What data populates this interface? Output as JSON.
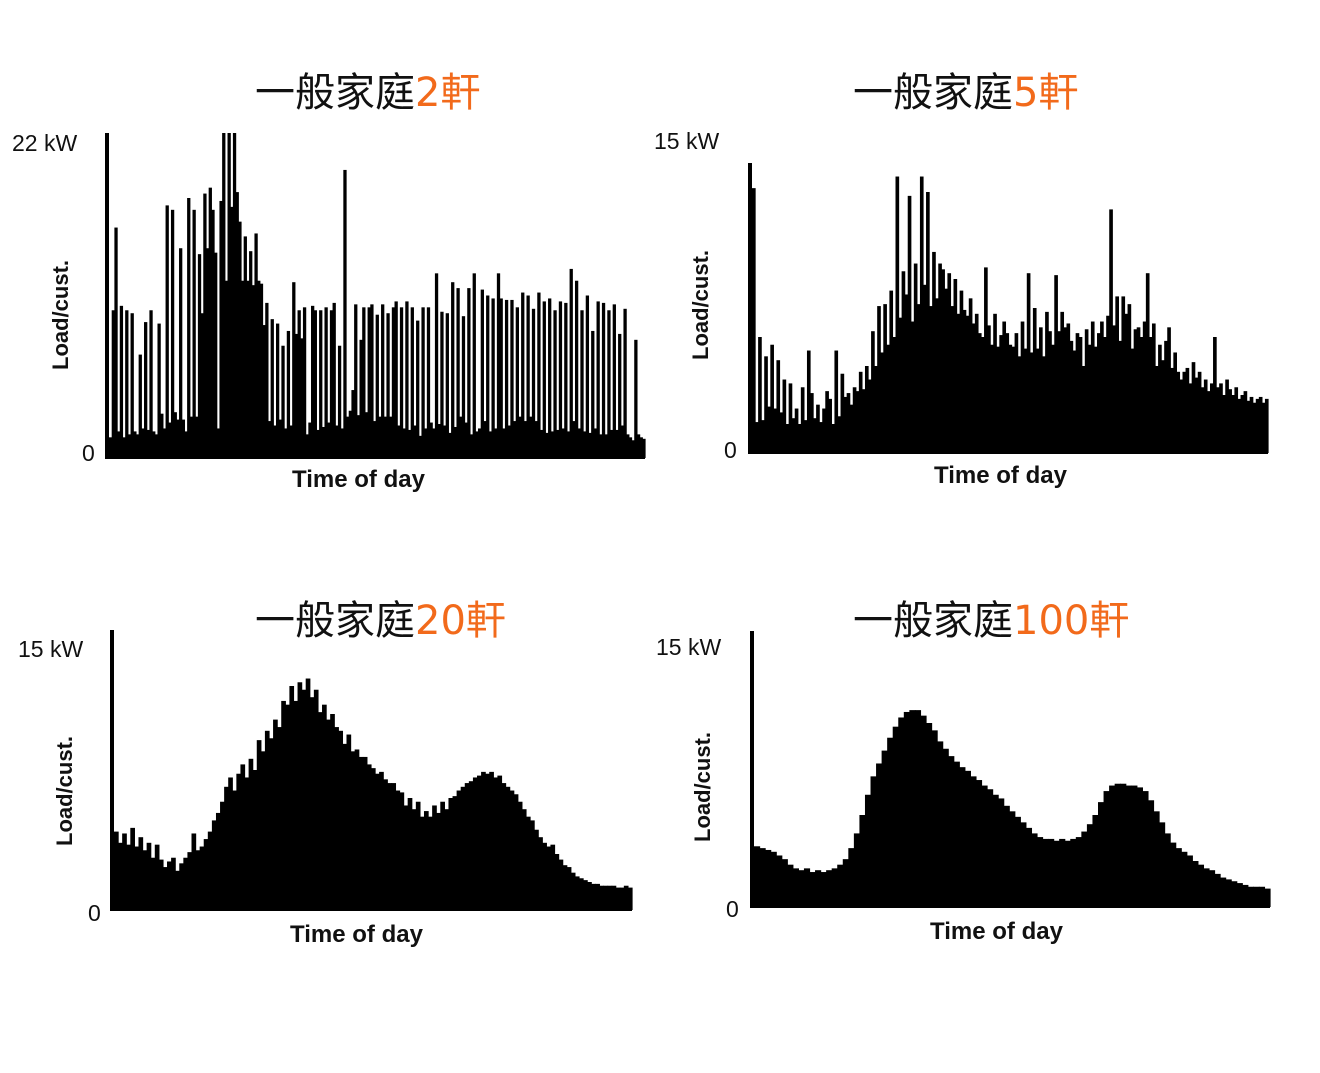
{
  "chart_data": [
    {
      "type": "bar",
      "title_base": "一般家庭",
      "title_count": "2軒",
      "ylabel": "Load/cust.",
      "xlabel": "Time of day",
      "ymax_label": "22 kW",
      "ymin_label": "0",
      "ylim": [
        0,
        22
      ],
      "values": [
        1.4,
        10.0,
        15.6,
        1.8,
        10.3,
        1.4,
        10.0,
        1.6,
        9.8,
        1.8,
        1.6,
        7.0,
        2.0,
        9.2,
        1.9,
        10.0,
        1.8,
        1.6,
        9.1,
        3.0,
        2.0,
        17.1,
        2.4,
        16.8,
        3.1,
        2.6,
        14.2,
        2.6,
        1.8,
        17.6,
        2.8,
        16.8,
        2.8,
        13.8,
        9.8,
        17.9,
        14.2,
        18.3,
        16.8,
        13.9,
        2.0,
        17.4,
        22.0,
        12.0,
        22.0,
        17.0,
        22.0,
        18.0,
        16.0,
        12.0,
        15.0,
        12.0,
        14.0,
        11.7,
        15.2,
        12.0,
        11.8,
        9.0,
        10.5,
        2.5,
        9.4,
        2.2,
        9.1,
        2.6,
        7.6,
        2.0,
        8.6,
        2.2,
        11.9,
        8.4,
        10.0,
        8.1,
        10.2,
        1.6,
        2.4,
        10.3,
        10.0,
        1.9,
        10.0,
        2.1,
        10.2,
        2.4,
        10.0,
        10.5,
        2.2,
        7.6,
        2.0,
        19.5,
        2.8,
        3.2,
        4.6,
        10.4,
        2.9,
        8.0,
        10.2,
        3.1,
        10.2,
        10.4,
        2.5,
        9.7,
        2.8,
        10.4,
        2.8,
        9.8,
        2.8,
        10.2,
        10.6,
        2.2,
        10.2,
        2.0,
        10.6,
        1.9,
        10.2,
        2.2,
        9.3,
        1.5,
        10.2,
        2.0,
        10.2,
        2.4,
        2.0,
        12.5,
        2.3,
        9.9,
        2.2,
        9.8,
        1.7,
        11.9,
        2.1,
        11.5,
        2.8,
        9.6,
        2.4,
        11.5,
        1.6,
        12.5,
        1.8,
        2.0,
        11.4,
        2.5,
        11.0,
        1.8,
        10.8,
        2.0,
        12.5,
        10.8,
        2.0,
        10.7,
        2.2,
        10.7,
        2.5,
        10.2,
        2.8,
        11.2,
        2.5,
        11.0,
        2.8,
        10.1,
        2.5,
        11.2,
        1.9,
        10.6,
        1.7,
        10.8,
        1.8,
        10.0,
        1.9,
        10.6,
        2.0,
        10.5,
        1.8,
        12.8,
        2.5,
        12.0,
        2.0,
        10.0,
        1.8,
        11.0,
        1.7,
        8.6,
        2.0,
        10.6,
        1.6,
        10.5,
        1.6,
        10.0,
        1.9,
        10.4,
        1.9,
        8.4,
        2.2,
        10.1,
        1.6,
        1.4,
        1.2,
        8.0,
        1.6,
        1.4,
        1.3
      ]
    },
    {
      "type": "bar",
      "title_base": "一般家庭",
      "title_count": "5軒",
      "ylabel": "Load/cust.",
      "xlabel": "Time of day",
      "ymax_label": "15 kW",
      "ymin_label": "0",
      "ylim": [
        0,
        15
      ],
      "values": [
        13.7,
        1.6,
        6.0,
        1.7,
        5.0,
        2.4,
        5.6,
        2.3,
        4.8,
        2.1,
        3.8,
        1.5,
        3.6,
        1.8,
        2.3,
        1.5,
        3.4,
        1.7,
        5.3,
        3.1,
        1.8,
        2.5,
        1.6,
        2.3,
        3.2,
        2.8,
        1.5,
        5.3,
        1.9,
        4.1,
        2.9,
        3.1,
        2.5,
        3.4,
        3.2,
        4.2,
        3.3,
        4.5,
        3.8,
        6.3,
        4.5,
        7.6,
        5.2,
        7.7,
        5.6,
        8.4,
        6.0,
        14.3,
        7.0,
        9.4,
        8.2,
        13.3,
        6.8,
        9.8,
        7.7,
        14.3,
        8.7,
        13.5,
        7.6,
        10.4,
        8.0,
        9.8,
        9.5,
        8.5,
        9.3,
        7.6,
        9.0,
        7.2,
        8.4,
        7.4,
        7.1,
        8.0,
        6.7,
        7.2,
        6.2,
        6.0,
        9.6,
        6.6,
        5.6,
        7.2,
        5.5,
        6.1,
        6.8,
        6.2,
        5.6,
        5.5,
        6.2,
        5.0,
        6.8,
        5.4,
        9.3,
        5.2,
        7.5,
        5.4,
        6.5,
        5.0,
        7.3,
        6.3,
        5.6,
        9.2,
        6.3,
        7.3,
        6.5,
        6.7,
        5.8,
        5.3,
        6.2,
        6.0,
        4.5,
        6.4,
        5.6,
        6.8,
        5.5,
        6.2,
        6.8,
        6.0,
        7.1,
        12.6,
        6.6,
        8.1,
        5.8,
        8.1,
        7.2,
        7.7,
        5.4,
        6.4,
        6.5,
        6.0,
        6.8,
        9.3,
        6.0,
        6.7,
        4.5,
        5.6,
        4.8,
        5.8,
        6.5,
        4.4,
        5.2,
        4.2,
        3.8,
        4.2,
        4.4,
        3.6,
        4.7,
        3.9,
        4.2,
        3.4,
        3.8,
        3.2,
        3.6,
        6.0,
        3.4,
        3.6,
        3.0,
        3.8,
        3.3,
        3.0,
        3.4,
        2.8,
        3.0,
        3.2,
        2.7,
        2.9,
        2.6,
        2.8,
        2.9,
        2.6,
        2.8
      ]
    },
    {
      "type": "bar",
      "title_base": "一般家庭",
      "title_count": "20軒",
      "ylabel": "Load/cust.",
      "xlabel": "Time of day",
      "ymax_label": "15 kW",
      "ymin_label": "0",
      "ylim": [
        0,
        15
      ],
      "values": [
        4.2,
        3.6,
        4.1,
        3.5,
        4.4,
        3.4,
        3.9,
        3.2,
        3.6,
        2.8,
        3.5,
        2.7,
        2.3,
        2.6,
        2.8,
        2.1,
        2.5,
        2.8,
        3.1,
        4.1,
        3.2,
        3.4,
        3.8,
        4.2,
        4.8,
        5.2,
        5.8,
        6.6,
        7.1,
        6.4,
        7.3,
        7.8,
        7.1,
        8.1,
        7.5,
        9.1,
        8.5,
        9.6,
        9.2,
        10.2,
        9.8,
        11.2,
        11.0,
        12.0,
        11.2,
        12.2,
        11.8,
        12.4,
        11.4,
        11.8,
        10.6,
        11.0,
        10.2,
        10.5,
        9.8,
        9.6,
        8.9,
        9.4,
        8.5,
        8.6,
        8.2,
        8.2,
        7.8,
        7.6,
        7.3,
        7.4,
        7.0,
        6.8,
        6.8,
        6.4,
        6.3,
        5.6,
        6.0,
        5.4,
        5.8,
        5.0,
        5.3,
        5.0,
        5.6,
        5.2,
        5.8,
        5.4,
        6.0,
        6.1,
        6.4,
        6.6,
        6.8,
        6.9,
        7.1,
        7.2,
        7.4,
        7.3,
        7.4,
        7.1,
        7.2,
        6.8,
        6.6,
        6.4,
        6.2,
        5.8,
        5.4,
        5.0,
        4.8,
        4.3,
        3.9,
        3.6,
        3.4,
        3.5,
        3.0,
        2.7,
        2.4,
        2.3,
        2.0,
        1.8,
        1.7,
        1.6,
        1.5,
        1.4,
        1.4,
        1.3,
        1.3,
        1.3,
        1.3,
        1.2,
        1.2,
        1.3,
        1.2
      ]
    },
    {
      "type": "bar",
      "title_base": "一般家庭",
      "title_count": "100軒",
      "ylabel": "Load/cust.",
      "xlabel": "Time of day",
      "ymax_label": "15 kW",
      "ymin_label": "0",
      "ylim": [
        0,
        15
      ],
      "values": [
        3.3,
        3.2,
        3.1,
        3.0,
        2.8,
        2.6,
        2.3,
        2.1,
        2.0,
        2.1,
        1.9,
        2.0,
        1.9,
        2.0,
        2.1,
        2.3,
        2.6,
        3.2,
        4.0,
        5.0,
        6.1,
        7.1,
        7.8,
        8.5,
        9.2,
        9.8,
        10.3,
        10.6,
        10.7,
        10.7,
        10.4,
        10.0,
        9.6,
        9.0,
        8.6,
        8.2,
        7.9,
        7.6,
        7.4,
        7.1,
        6.9,
        6.6,
        6.4,
        6.1,
        5.9,
        5.5,
        5.2,
        4.9,
        4.6,
        4.3,
        4.0,
        3.8,
        3.7,
        3.7,
        3.6,
        3.7,
        3.6,
        3.7,
        3.8,
        4.1,
        4.5,
        5.0,
        5.7,
        6.3,
        6.6,
        6.7,
        6.7,
        6.6,
        6.6,
        6.5,
        6.3,
        5.8,
        5.2,
        4.6,
        4.0,
        3.5,
        3.2,
        3.0,
        2.8,
        2.5,
        2.3,
        2.1,
        2.0,
        1.8,
        1.6,
        1.5,
        1.4,
        1.3,
        1.2,
        1.1,
        1.1,
        1.1,
        1.0
      ]
    }
  ]
}
